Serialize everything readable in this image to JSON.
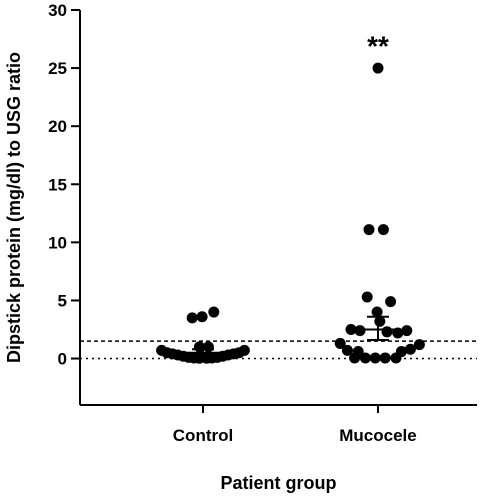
{
  "chart_data": {
    "type": "scatter",
    "xlabel": "Patient group",
    "ylabel": "Dipstick protein (mg/dl) to USG ratio",
    "ylim": [
      -4,
      30
    ],
    "yticks": [
      0,
      5,
      10,
      15,
      20,
      25,
      30
    ],
    "yticks_labels": [
      "0",
      "5",
      "10",
      "15",
      "20",
      "25",
      "30"
    ],
    "categories": [
      "Control",
      "Mucocele"
    ],
    "grid": false,
    "reference_lines": [
      {
        "y": 1.5,
        "style": "dashed"
      },
      {
        "y": 0,
        "style": "dotted"
      }
    ],
    "series": [
      {
        "category": "Control",
        "points": [
          {
            "y": 0.7,
            "offset": -0.46
          },
          {
            "y": 0.5,
            "offset": -0.4
          },
          {
            "y": 0.4,
            "offset": -0.34
          },
          {
            "y": 0.3,
            "offset": -0.28
          },
          {
            "y": 0.2,
            "offset": -0.22
          },
          {
            "y": 0.1,
            "offset": -0.16
          },
          {
            "y": 0.05,
            "offset": -0.1
          },
          {
            "y": 0.02,
            "offset": -0.04
          },
          {
            "y": 0.02,
            "offset": 0.04
          },
          {
            "y": 0.05,
            "offset": 0.1
          },
          {
            "y": 0.1,
            "offset": 0.16
          },
          {
            "y": 0.2,
            "offset": 0.22
          },
          {
            "y": 0.3,
            "offset": 0.28
          },
          {
            "y": 0.4,
            "offset": 0.34
          },
          {
            "y": 0.5,
            "offset": 0.4
          },
          {
            "y": 0.7,
            "offset": 0.46
          },
          {
            "y": 1.0,
            "offset": -0.04
          },
          {
            "y": 1.0,
            "offset": 0.06
          },
          {
            "y": 3.5,
            "offset": -0.12
          },
          {
            "y": 3.6,
            "offset": -0.01
          },
          {
            "y": 4.0,
            "offset": 0.12
          }
        ],
        "mean": 0.5,
        "error_low": 0.2,
        "error_high": 0.8
      },
      {
        "category": "Mucocele",
        "points": [
          {
            "y": 25.0,
            "offset": 0.0
          },
          {
            "y": 11.1,
            "offset": -0.1
          },
          {
            "y": 11.1,
            "offset": 0.06
          },
          {
            "y": 5.3,
            "offset": -0.12
          },
          {
            "y": 4.9,
            "offset": 0.14
          },
          {
            "y": 4.0,
            "offset": -0.01
          },
          {
            "y": 3.2,
            "offset": 0.02
          },
          {
            "y": 2.5,
            "offset": -0.3
          },
          {
            "y": 2.4,
            "offset": -0.2
          },
          {
            "y": 2.3,
            "offset": 0.1
          },
          {
            "y": 2.2,
            "offset": 0.22
          },
          {
            "y": 2.4,
            "offset": 0.32
          },
          {
            "y": 1.3,
            "offset": -0.42
          },
          {
            "y": 1.2,
            "offset": 0.46
          },
          {
            "y": 0.7,
            "offset": -0.34
          },
          {
            "y": 0.6,
            "offset": -0.22
          },
          {
            "y": 0.6,
            "offset": 0.26
          },
          {
            "y": 0.8,
            "offset": 0.36
          },
          {
            "y": 0.05,
            "offset": -0.26
          },
          {
            "y": 0.05,
            "offset": -0.14
          },
          {
            "y": 0.05,
            "offset": -0.03
          },
          {
            "y": 0.05,
            "offset": 0.08
          },
          {
            "y": 0.05,
            "offset": 0.2
          }
        ],
        "mean": 2.5,
        "error_low": 1.6,
        "error_high": 3.6
      }
    ],
    "annotations": [
      {
        "text": "**",
        "category": "Mucocele",
        "y": 27.3
      }
    ]
  }
}
